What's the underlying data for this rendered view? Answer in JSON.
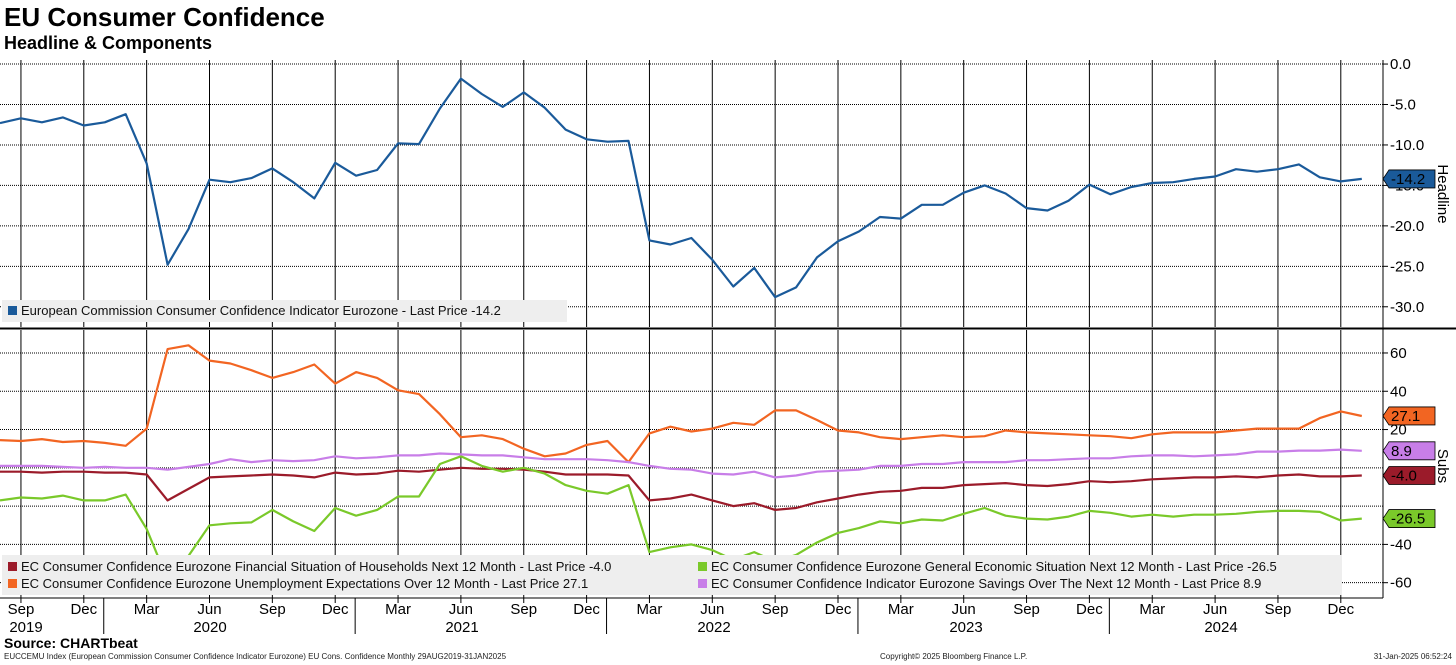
{
  "header": {
    "title": "EU Consumer Confidence",
    "subtitle": "Headline & Components"
  },
  "source": "Source: CHARTbeat",
  "footer": {
    "left": "EUCCEMU Index (European Commission Consumer Confidence Indicator Eurozone) EU Cons. Confidence  Monthly 29AUG2019-31JAN2025",
    "center": "Copyright© 2025 Bloomberg Finance L.P.",
    "right": "31-Jan-2025 06:52:24"
  },
  "chart_data": [
    {
      "type": "line",
      "panel": "top",
      "ylabel": "Headline",
      "ylim": [
        -32.5,
        0.5
      ],
      "yticks": [
        "0.0",
        "-5.0",
        "-10.0",
        "-15.0",
        "-20.0",
        "-25.0",
        "-30.0"
      ],
      "ytick_values": [
        0,
        -5,
        -10,
        -15,
        -20,
        -25,
        -30
      ],
      "grid": true,
      "legend_placement": "bottom-left",
      "series": [
        {
          "name": "European Commission Consumer Confidence Indicator Eurozone - Last Price -14.2",
          "color": "#1a5a9a",
          "last_label": "-14.2",
          "values": [
            -7.3,
            -6.7,
            -7.2,
            -6.6,
            -7.6,
            -7.2,
            -6.2,
            -12.3,
            -24.8,
            -20.4,
            -14.3,
            -14.6,
            -14.1,
            -12.9,
            -14.6,
            -16.6,
            -12.2,
            -13.8,
            -13.1,
            -9.8,
            -9.9,
            -5.5,
            -1.8,
            -3.7,
            -5.3,
            -3.5,
            -5.4,
            -8.1,
            -9.3,
            -9.6,
            -9.5,
            -21.8,
            -22.3,
            -21.5,
            -24.2,
            -27.5,
            -25.2,
            -28.8,
            -27.6,
            -23.9,
            -21.9,
            -20.7,
            -18.9,
            -19.1,
            -17.4,
            -17.4,
            -15.9,
            -15.0,
            -16.0,
            -17.8,
            -18.1,
            -16.9,
            -14.9,
            -16.1,
            -15.2,
            -14.7,
            -14.6,
            -14.2,
            -13.9,
            -13.0,
            -13.3,
            -13.0,
            -12.4,
            -14.0,
            -14.5,
            -14.2
          ]
        }
      ]
    },
    {
      "type": "line",
      "panel": "bottom",
      "ylabel": "Subs",
      "ylim": [
        -68,
        72
      ],
      "yticks": [
        "60",
        "40",
        "20",
        "-40",
        "-60"
      ],
      "ytick_values": [
        60,
        40,
        20,
        -40,
        -60
      ],
      "grid": true,
      "legend_placement": "bottom-left",
      "series": [
        {
          "name": "EC Consumer Confidence Eurozone Financial Situation of Households Next 12 Month - Last Price -4.0",
          "color": "#9b1b2a",
          "last_label": "-4.0",
          "values": [
            -2,
            -2,
            -2.5,
            -2,
            -2,
            -2.5,
            -2.5,
            -3.5,
            -17,
            -11,
            -5,
            -4.5,
            -4,
            -3.5,
            -4,
            -5,
            -2.5,
            -3.5,
            -3,
            -1.5,
            -2,
            -1,
            0,
            -0.5,
            -0.5,
            -1,
            -2,
            -3.5,
            -3.5,
            -3.5,
            -4,
            -17,
            -16,
            -14,
            -17,
            -20,
            -18.5,
            -22,
            -21,
            -18,
            -16,
            -14,
            -12.5,
            -12,
            -10.5,
            -10.5,
            -9,
            -8.5,
            -8,
            -9,
            -9.5,
            -8.5,
            -7,
            -7.5,
            -7,
            -6,
            -5.5,
            -5,
            -5,
            -4.5,
            -5,
            -4,
            -3.5,
            -4.5,
            -4.5,
            -4
          ]
        },
        {
          "name": "EC Consumer Confidence Eurozone General Economic Situation Next 12 Month - Last Price -26.5",
          "color": "#7ac92a",
          "last_label": "-26.5",
          "values": [
            -17,
            -15.5,
            -16,
            -14.5,
            -17,
            -17,
            -14,
            -32,
            -58.5,
            -46,
            -30,
            -29,
            -28.5,
            -22,
            -28,
            -33,
            -21,
            -25,
            -22,
            -15,
            -15,
            2,
            6,
            1,
            -2,
            0,
            -3,
            -9,
            -12,
            -13.5,
            -9,
            -44,
            -41.5,
            -40,
            -43,
            -48,
            -44,
            -49,
            -45.5,
            -39,
            -34,
            -31.5,
            -28,
            -29,
            -27,
            -27.5,
            -24,
            -21,
            -25,
            -26.5,
            -27,
            -25.5,
            -22.5,
            -23.5,
            -25.5,
            -24.5,
            -25.5,
            -24.5,
            -24.5,
            -24,
            -23,
            -22.5,
            -22.5,
            -23,
            -27.5,
            -26.5
          ]
        },
        {
          "name": "EC Consumer Confidence Eurozone Unemployment Expectations Over 12 Month - Last Price 27.1",
          "color": "#f26522",
          "last_label": "27.1",
          "values": [
            14.5,
            14,
            15,
            13.5,
            14,
            13,
            11.5,
            20.5,
            62,
            64,
            56,
            54.5,
            51,
            47,
            50,
            54,
            44,
            50,
            47,
            40.5,
            38.5,
            28,
            16,
            17,
            15,
            10,
            6,
            7.5,
            12,
            14,
            3,
            18,
            21.5,
            19,
            20.5,
            23.5,
            22.5,
            30,
            30,
            25,
            19.5,
            18.5,
            16,
            15,
            16,
            17,
            16,
            16.5,
            19.5,
            18.5,
            18,
            17.5,
            17,
            16.5,
            15.5,
            17.5,
            18.5,
            18.5,
            18.5,
            19.5,
            20.5,
            20.5,
            20.5,
            26,
            29.5,
            27.1
          ]
        },
        {
          "name": "EC Consumer Confidence Indicator Eurozone Savings Over The Next 12 Month - Last Price 8.9",
          "color": "#c87ee8",
          "last_label": "8.9",
          "values": [
            1,
            1,
            1,
            0.5,
            0,
            0.5,
            0,
            0,
            -1,
            0.5,
            2,
            4.5,
            3,
            4,
            3.5,
            4,
            6,
            5,
            5.5,
            6.5,
            6.5,
            7.5,
            7,
            6.5,
            6.5,
            5.5,
            4.5,
            4.5,
            4.5,
            4,
            3,
            1,
            -0.5,
            -1,
            -3,
            -3.5,
            -2,
            -5,
            -4,
            -2,
            -1.5,
            -1,
            1,
            1,
            2,
            2,
            3,
            3,
            3,
            4,
            4,
            4.5,
            5,
            5,
            6,
            6.5,
            6.5,
            6,
            6.5,
            7,
            8.5,
            8.5,
            9,
            9,
            9.5,
            8.9
          ]
        }
      ]
    }
  ],
  "x_axis": {
    "months": [
      "Sep",
      "Dec",
      "Mar",
      "Jun",
      "Sep",
      "Dec",
      "Mar",
      "Jun",
      "Sep",
      "Dec",
      "Mar",
      "Jun",
      "Sep",
      "Dec",
      "Mar",
      "Jun",
      "Sep",
      "Dec",
      "Mar",
      "Jun",
      "Sep",
      "Dec"
    ],
    "years": [
      "2019",
      "2020",
      "2021",
      "2022",
      "2023",
      "2024"
    ]
  }
}
